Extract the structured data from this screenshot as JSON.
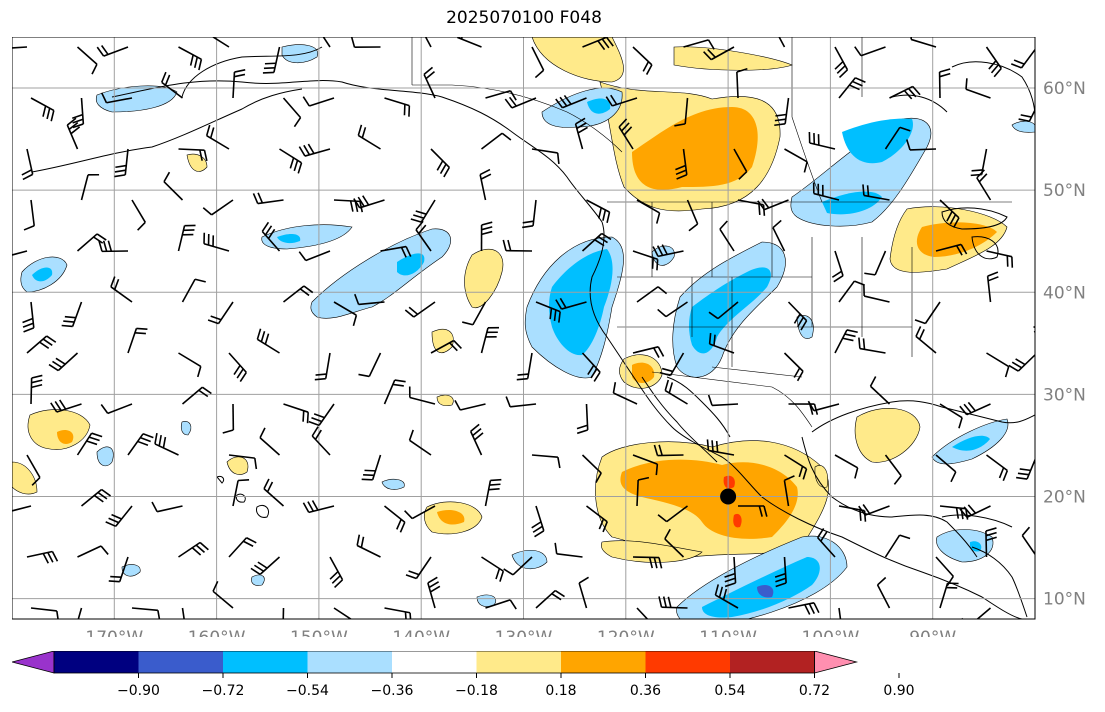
{
  "title": "2025070100 F048",
  "map": {
    "lon_labels": [
      "170°W",
      "160°W",
      "150°W",
      "140°W",
      "130°W",
      "120°W",
      "110°W",
      "100°W",
      "90°W"
    ],
    "lon_values": [
      -170,
      -160,
      -150,
      -140,
      -130,
      -120,
      -110,
      -100,
      -90
    ],
    "lat_labels": [
      "10°N",
      "20°N",
      "30°N",
      "40°N",
      "50°N",
      "60°N"
    ],
    "lat_values": [
      10,
      20,
      30,
      40,
      50,
      60
    ],
    "extent": {
      "lon_min": -180,
      "lon_max": -80,
      "lat_min": 8,
      "lat_max": 65
    },
    "grid": true,
    "marker": {
      "lon": -110,
      "lat": 20,
      "color": "#000000"
    },
    "label_color": "#808080"
  },
  "colorbar": {
    "levels": [
      "−0.90",
      "−0.72",
      "−0.54",
      "−0.36",
      "−0.18",
      "0.18",
      "0.36",
      "0.54",
      "0.72",
      "0.90"
    ],
    "colors": [
      "#9933cc",
      "#000080",
      "#3a5ccc",
      "#00bfff",
      "#aadfff",
      "#ffffff",
      "#ffea8a",
      "#ffa500",
      "#ff3a00",
      "#b22222",
      "#ff8fb0"
    ]
  }
}
